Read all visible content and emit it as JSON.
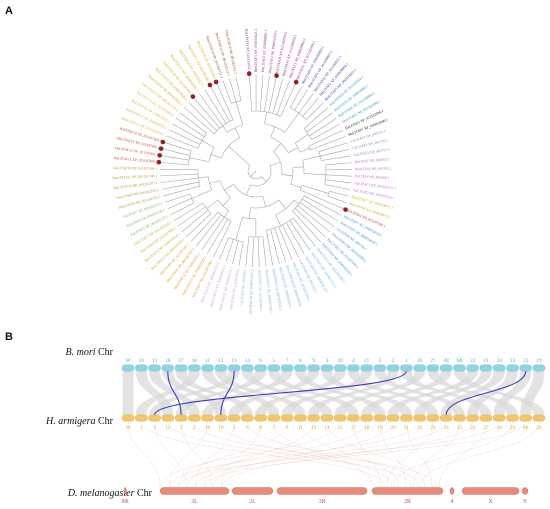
{
  "panels": {
    "a": "A",
    "b": "B"
  },
  "colors": {
    "branch": "#9e9e9e",
    "marker": "#9b1c1c",
    "bmori_chr": "#8fd3e6",
    "harm_chr": "#f2c66d",
    "dmel_chr": "#e68a7a",
    "synteny": "#d9d9d9",
    "highlight": "#3a3ab8",
    "bm_num": "#4aa8c9",
    "ha_num": "#e0a22e"
  },
  "tree": {
    "leaf_groups": [
      {
        "color": "#8c1c6e",
        "labels": [
          "HaLITAF19 XP_021191923.1",
          "BmLITAF1 XP_004931623.1",
          "MsLITAF2 XP_030028861.1",
          "BmLITAF2 XP_004931624.1",
          "HaLITAF20 XP_021182919.1",
          "BmLITAF3 XP_012549856.1",
          "MsLITAF3 XP_030028862.1",
          "HaLITAF21 XP_021182920.1"
        ]
      },
      {
        "color": "#2b2bb5",
        "labels": [
          "MsLITAF4 XP_030028863.1",
          "BmLITAF4 XP_012549857.1",
          "HaLITAF22 XP_021182921.1",
          "MsLITAF5 XP_030028864.1",
          "BmLITAF5 XP_004931625.1"
        ]
      },
      {
        "color": "#1f8fb8",
        "labels": [
          "HaLITAF23 XP_021182922.1",
          "MsLITAF6 XP_030028865.1",
          "BmLITAF6 XP_012549858.1",
          "DmLITAF1 NP_001262098.1"
        ]
      },
      {
        "color": "#111111",
        "labels": [
          "HaLITAF1 XP_021182098.1",
          "MsLITAF1 XP_030022096.1"
        ]
      },
      {
        "color": "#7a7fb0",
        "labels": [
          "CeLITAF1 NP_495724.1",
          "CeLITAF2 NP_495726.1",
          "CeLITAF3 NP_495727.1"
        ]
      },
      {
        "color": "#c05fc8",
        "labels": [
          "HsLITAF NP_004853.2",
          "MmLITAF NP_062765.1",
          "PvLITAF NP_001096.1",
          "AaLITAF1 XP_001652121.1",
          "AaLITAF2 XP_001652122.1"
        ]
      },
      {
        "color": "#d4a017",
        "labels": [
          "BmLITAF7 XP_004928071.1",
          "BmLITAF8 XP_004928072.1"
        ]
      },
      {
        "color": "#b22222",
        "labels": [
          "HaLITAF2 XP_021187391.1"
        ]
      },
      {
        "color": "#2c8fc9",
        "labels": [
          "MsLITAF7 XP_030032018.1",
          "BmLITAF9 XP_004932018.1",
          "CeLITAF4 NP_495728.1",
          "DmLITAF2 NP_001262099.1",
          "HaLITAF3 XP_021187392.1",
          "MsLITAF8 XP_030032019.1"
        ]
      },
      {
        "color": "#5ab0e0",
        "labels": [
          "DmLITAF3 NP_001262100.1",
          "AaLITAF3 XP_001652123.1",
          "AaLITAF4 XP_001652124.1",
          "CeLITAF5 NP_495729.1",
          "HaLITAF4 XP_021187393.1",
          "BmLITAF10 XP_004932019.1",
          "MsLITAF9 XP_030032020.1",
          "DmLITAF4 NP_001262101.1"
        ]
      },
      {
        "color": "#8da8c8",
        "labels": [
          "BmLITAF11 XP_004932020.1",
          "HaLITAF5 XP_021187394.1",
          "MsLITAF10 XP_030032021.1",
          "CeLITAF6 NP_495730.1"
        ]
      },
      {
        "color": "#d58fd8",
        "labels": [
          "HaLITAF6 XP_021187395.1",
          "BmLITAF12 XP_004932021.1",
          "MsLITAF11 XP_030032022.1",
          "DmLITAF5 NP_001262102.1"
        ]
      },
      {
        "color": "#e08a1e",
        "labels": [
          "HaLITAF7 XP_021187396.1",
          "BmLITAF13 XP_004932022.1",
          "MsLITAF12 XP_030032023.1",
          "DmLITAF6 NP_001262103.1",
          "HaLITAF8 XP_021187397.1"
        ]
      },
      {
        "color": "#c9a227",
        "labels": [
          "BmLITAF14 XP_004932023.1",
          "MsLITAF13 XP_030032024.1",
          "HaLITAF9 XP_021187398.1",
          "DmLITAF7 NP_001262104.1"
        ]
      },
      {
        "color": "#6fb04c",
        "labels": [
          "AaLITAF5 XP_001652125.1",
          "AaLITAF6 XP_001652126.1",
          "AaLITAF7 XP_001652127.1"
        ]
      },
      {
        "color": "#b58e2a",
        "labels": [
          "DmLITAF8 NP_001262105.1",
          "DmLITAF9 NP_001262106.1",
          "DmLITAF10 NP_001262107.1",
          "DmLITAF11 NP_001262108.1",
          "HaLITAF10 XP_021187399.1"
        ]
      },
      {
        "color": "#c0392b",
        "labels": [
          "HaLITAF11 XP_021187400.1",
          "HaLITAF12 XP_021187401.1",
          "HaLITAF13 XP_021187402.1",
          "HaLITAF14 XP_021187403.1"
        ]
      },
      {
        "color": "#e0a64a",
        "labels": [
          "DmLITAF12 NP_001262109.1",
          "BmLITAF15 XP_004932024.1",
          "MsLITAF14 XP_030032025.1",
          "HaLITAF15 XP_021187404.1",
          "DmLITAF13 NP_001262110.1"
        ]
      },
      {
        "color": "#d4a017",
        "labels": [
          "BmLITAF16 XP_004932025.1",
          "MsLITAF15 XP_030032026.1",
          "HaLITAF16 XP_021187405.1",
          "BmLITAF17 XP_004932026.1",
          "MsLITAF16 XP_030032027.1",
          "HaLITAF17 XP_021187406.1",
          "HaLITAF18 XP_021187407.1"
        ]
      },
      {
        "color": "#8b4513",
        "labels": [
          "DmLITAF14 NP_001262111.1",
          "DmLITAF15 NP_001262112.1",
          "DmLITAF16 NP_001262113.1"
        ]
      }
    ]
  },
  "synteny": {
    "bmori": {
      "name": "B. mori",
      "suffix": " Chr",
      "chromosomes": [
        "W",
        "10",
        "15",
        "16",
        "17",
        "18",
        "11",
        "12",
        "13",
        "14",
        "6",
        "5",
        "7",
        "8",
        "9",
        "3",
        "20",
        "4",
        "21",
        "3",
        "2",
        "1",
        "26",
        "27",
        "28",
        "Mt",
        "22",
        "21",
        "24",
        "23",
        "25",
        "19"
      ]
    },
    "harmigera": {
      "name": "H. armigera",
      "suffix": " Chr",
      "chromosomes": [
        "30",
        "1",
        "4",
        "12",
        "5",
        "2",
        "16",
        "10",
        "3",
        "6",
        "8",
        "7",
        "9",
        "11",
        "13",
        "14",
        "15",
        "17",
        "18",
        "19",
        "20",
        "21",
        "22",
        "23",
        "24",
        "25",
        "26",
        "27",
        "28",
        "29",
        "Mt",
        "29"
      ]
    },
    "dmel": {
      "name": "D. melanogaster",
      "suffix": " Chr",
      "chromosomes": [
        "Mt",
        "3L",
        "2L",
        "3R",
        "2R",
        "4",
        "X",
        "Y"
      ]
    },
    "highlight_links": [
      {
        "from": "16",
        "to": "5"
      },
      {
        "from": "13",
        "to": "10"
      },
      {
        "from": "1",
        "to": "4"
      },
      {
        "from": "25",
        "to": "24"
      }
    ]
  }
}
